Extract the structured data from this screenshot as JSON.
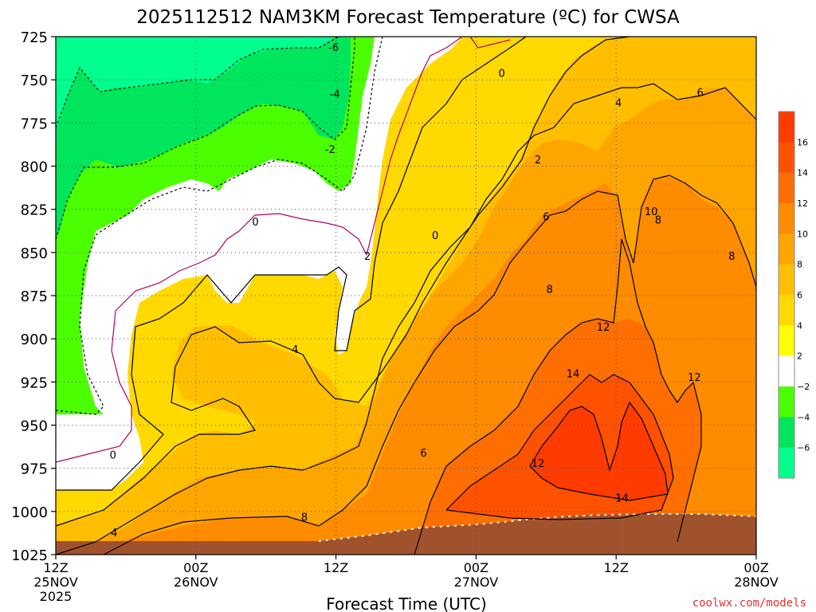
{
  "chart_data": {
    "type": "heatmap",
    "title": "2025112512 NAM3KM Forecast Temperature (ºC) for CWSA",
    "xlabel": "Forecast Time (UTC)",
    "ylabel": "",
    "credit": "coolwx.com/models",
    "y_ticks": [
      "725",
      "750",
      "775",
      "800",
      "825",
      "850",
      "875",
      "900",
      "925",
      "950",
      "975",
      "1000",
      "1025"
    ],
    "y_range": [
      725,
      1025
    ],
    "x_ticks": [
      {
        "hour": "12Z",
        "date": "25NOV",
        "year": "2025"
      },
      {
        "hour": "00Z",
        "date": "26NOV",
        "year": ""
      },
      {
        "hour": "12Z",
        "date": "",
        "year": ""
      },
      {
        "hour": "00Z",
        "date": "27NOV",
        "year": ""
      },
      {
        "hour": "12Z",
        "date": "",
        "year": ""
      },
      {
        "hour": "00Z",
        "date": "28NOV",
        "year": ""
      }
    ],
    "x_range_hours": [
      0,
      60
    ],
    "grid": true,
    "legend_position": "right",
    "colorbar": {
      "ticks": [
        "16",
        "14",
        "12",
        "10",
        "8",
        "6",
        "4",
        "2",
        "−2",
        "−4",
        "−6"
      ],
      "levels": [
        {
          "range": "16 to 18",
          "color": "#ff3b00"
        },
        {
          "range": "14 to 16",
          "color": "#ff5200"
        },
        {
          "range": "12 to 14",
          "color": "#ff6e00"
        },
        {
          "range": "10 to 12",
          "color": "#ff8b00"
        },
        {
          "range": "8 to 10",
          "color": "#ffa500"
        },
        {
          "range": "6 to 8",
          "color": "#ffbf00"
        },
        {
          "range": "4 to 6",
          "color": "#ffd900"
        },
        {
          "range": "2 to 4",
          "color": "#ffff00"
        },
        {
          "range": "-2 to 2",
          "color": "#ffffff"
        },
        {
          "range": "-4 to -2",
          "color": "#4cff00"
        },
        {
          "range": "-6 to -4",
          "color": "#00e65c"
        },
        {
          "range": "-8 to -6",
          "color": "#00ff8c"
        }
      ]
    },
    "contour_labels": [
      {
        "text": "-6",
        "hour": 23.8,
        "p": 731
      },
      {
        "text": "-4",
        "hour": 23.9,
        "p": 758
      },
      {
        "text": "-2",
        "hour": 23.5,
        "p": 790
      },
      {
        "text": "0",
        "hour": 38.2,
        "p": 746
      },
      {
        "text": "0",
        "hour": 17.1,
        "p": 832
      },
      {
        "text": "0",
        "hour": 32.5,
        "p": 840
      },
      {
        "text": "0",
        "hour": 4.9,
        "p": 967
      },
      {
        "text": "2",
        "hour": 26.7,
        "p": 852
      },
      {
        "text": "2",
        "hour": 41.3,
        "p": 796
      },
      {
        "text": "4",
        "hour": 20.5,
        "p": 906
      },
      {
        "text": "4",
        "hour": 48.2,
        "p": 763
      },
      {
        "text": "4",
        "hour": 5.0,
        "p": 1012
      },
      {
        "text": "6",
        "hour": 55.2,
        "p": 757
      },
      {
        "text": "6",
        "hour": 31.5,
        "p": 966
      },
      {
        "text": "6",
        "hour": 42.0,
        "p": 829
      },
      {
        "text": "8",
        "hour": 42.3,
        "p": 871
      },
      {
        "text": "8",
        "hour": 21.3,
        "p": 1003
      },
      {
        "text": "8",
        "hour": 51.6,
        "p": 831
      },
      {
        "text": "8",
        "hour": 57.9,
        "p": 852
      },
      {
        "text": "10",
        "hour": 51.0,
        "p": 826
      },
      {
        "text": "12",
        "hour": 46.9,
        "p": 893
      },
      {
        "text": "12",
        "hour": 54.7,
        "p": 922
      },
      {
        "text": "12",
        "hour": 41.3,
        "p": 972
      },
      {
        "text": "14",
        "hour": 44.3,
        "p": 920
      },
      {
        "text": "14",
        "hour": 48.5,
        "p": 992
      }
    ]
  }
}
